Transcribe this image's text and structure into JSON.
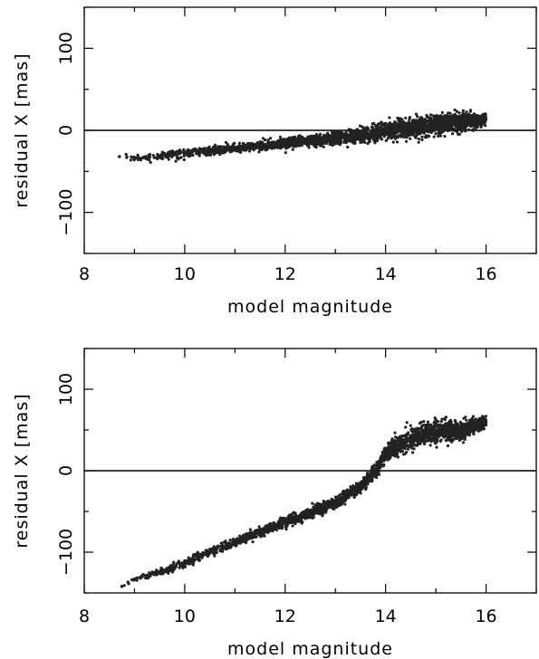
{
  "chart_data": [
    {
      "type": "scatter",
      "title": "",
      "xlabel": "model magnitude",
      "ylabel": "residual X [mas]",
      "xlim": [
        8,
        17
      ],
      "ylim": [
        -150,
        150
      ],
      "x_ticks": [
        8,
        10,
        12,
        14,
        16
      ],
      "y_ticks": [
        -100,
        0,
        100
      ],
      "zero_line": true,
      "grid": false,
      "marker_color": "#222222",
      "trend": {
        "x": [
          8.7,
          9.0,
          9.5,
          10.0,
          10.5,
          11.0,
          11.5,
          12.0,
          12.5,
          13.0,
          13.5,
          14.0,
          14.5,
          15.0,
          15.5,
          16.0
        ],
        "y": [
          -32,
          -34,
          -31,
          -28,
          -25,
          -22,
          -19,
          -16,
          -13,
          -10,
          -6,
          -1,
          3,
          7,
          10,
          13
        ],
        "spread": [
          2,
          3,
          4,
          5,
          5,
          5,
          5,
          6,
          6,
          7,
          8,
          9,
          10,
          11,
          10,
          6
        ]
      }
    },
    {
      "type": "scatter",
      "title": "",
      "xlabel": "model magnitude",
      "ylabel": "residual X [mas]",
      "xlim": [
        8,
        17
      ],
      "ylim": [
        -150,
        150
      ],
      "x_ticks": [
        8,
        10,
        12,
        14,
        16
      ],
      "y_ticks": [
        -100,
        0,
        100
      ],
      "zero_line": true,
      "grid": false,
      "marker_color": "#222222",
      "trend": {
        "x": [
          8.75,
          9.0,
          9.5,
          10.0,
          10.5,
          11.0,
          11.5,
          12.0,
          12.5,
          13.0,
          13.5,
          13.8,
          14.0,
          14.5,
          15.0,
          15.5,
          16.0
        ],
        "y": [
          -142,
          -133,
          -125,
          -113,
          -100,
          -88,
          -75,
          -63,
          -52,
          -40,
          -20,
          0,
          20,
          40,
          48,
          50,
          60
        ],
        "spread": [
          2,
          3,
          4,
          5,
          5,
          5,
          5,
          6,
          6,
          6,
          6,
          7,
          9,
          11,
          12,
          10,
          6
        ]
      }
    }
  ]
}
